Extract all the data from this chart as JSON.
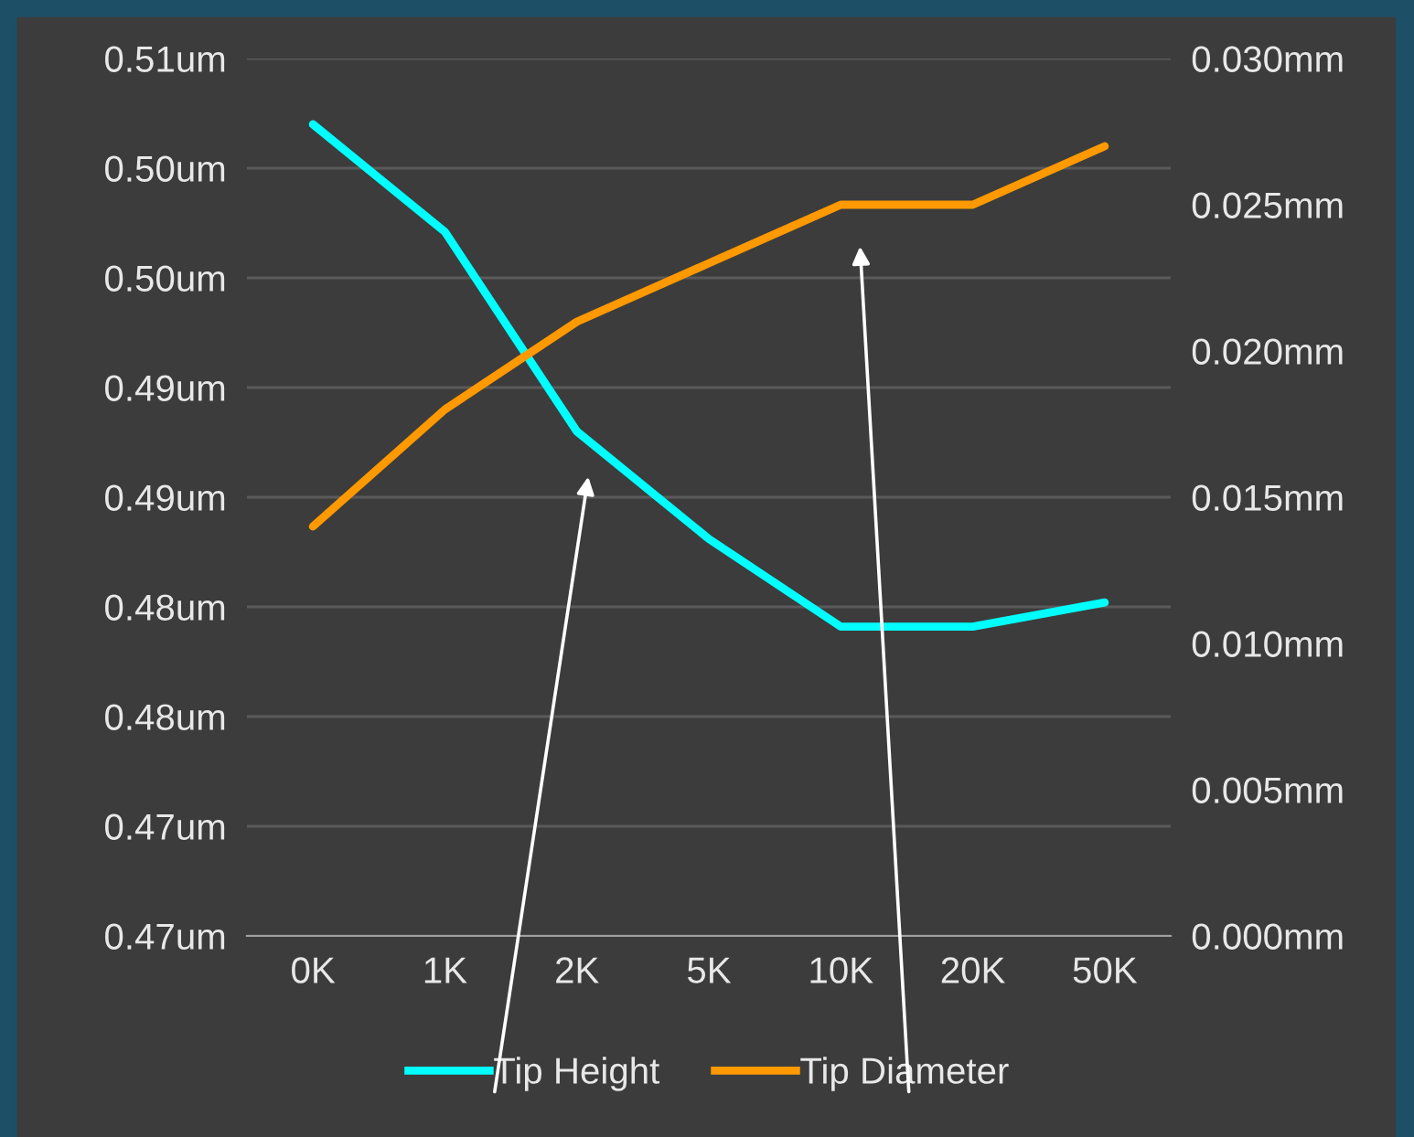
{
  "chart_data": {
    "type": "line",
    "categories": [
      "0K",
      "1K",
      "2K",
      "5K",
      "10K",
      "20K",
      "50K"
    ],
    "series": [
      {
        "name": "Tip Height",
        "color": "#00ffff",
        "values": [
          0.507,
          0.5021,
          0.493,
          0.4881,
          0.4841,
          0.4841,
          0.4852
        ]
      },
      {
        "name": "Tip Diameter",
        "color": "#ff9900",
        "axis": "y2",
        "values": [
          0.014,
          0.018,
          0.021,
          0.023,
          0.025,
          0.025,
          0.027
        ]
      }
    ],
    "ylim": [
      0.47,
      0.51
    ],
    "yticks": [
      {
        "value": 0.47,
        "label": "0.47um"
      },
      {
        "value": 0.475,
        "label": "0.47um"
      },
      {
        "value": 0.48,
        "label": "0.48um"
      },
      {
        "value": 0.485,
        "label": "0.48um"
      },
      {
        "value": 0.49,
        "label": "0.49um"
      },
      {
        "value": 0.495,
        "label": "0.49um"
      },
      {
        "value": 0.5,
        "label": "0.50um"
      },
      {
        "value": 0.505,
        "label": "0.50um"
      },
      {
        "value": 0.51,
        "label": "0.51um"
      }
    ],
    "y2lim": [
      0,
      0.03
    ],
    "y2ticks": [
      {
        "value": 0,
        "label": "0.000mm"
      },
      {
        "value": 0.005,
        "label": "0.005mm"
      },
      {
        "value": 0.01,
        "label": "0.010mm"
      },
      {
        "value": 0.015,
        "label": "0.015mm"
      },
      {
        "value": 0.02,
        "label": "0.020mm"
      },
      {
        "value": 0.025,
        "label": "0.025mm"
      },
      {
        "value": 0.03,
        "label": "0.030mm"
      }
    ],
    "grid": "y",
    "legend": "bottom",
    "marker": "none",
    "line_style": "solid"
  }
}
